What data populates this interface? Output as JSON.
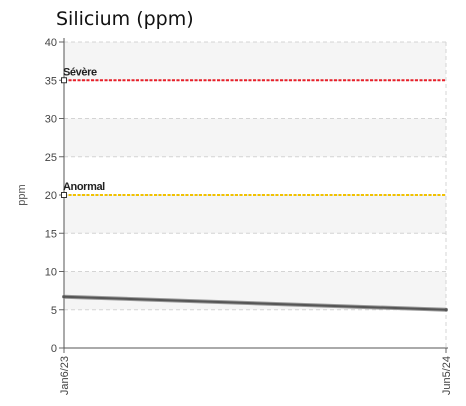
{
  "chart_data": {
    "type": "line",
    "title": "Silicium (ppm)",
    "ylabel": "ppm",
    "xlabel": "",
    "ylim": [
      0,
      40
    ],
    "yticks": [
      0,
      5,
      10,
      15,
      20,
      25,
      30,
      35,
      40
    ],
    "x_ticks": [
      "Jan6/23",
      "Jun5/24"
    ],
    "grid": true,
    "thresholds": [
      {
        "label": "Sévère",
        "value": 35,
        "color": "#e8202a"
      },
      {
        "label": "Anormal",
        "value": 20,
        "color": "#f2c200"
      }
    ],
    "series": [
      {
        "x": [
          "Jan6/23",
          "Jun5/24"
        ],
        "values": [
          6.7,
          5.0
        ],
        "color": "#555555"
      }
    ]
  }
}
